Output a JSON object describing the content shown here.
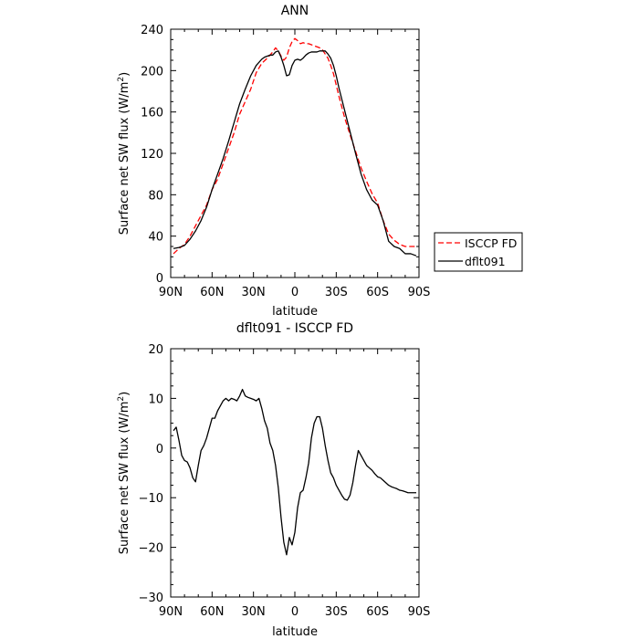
{
  "chart_data": [
    {
      "type": "line",
      "title": "ANN",
      "xlabel": "latitude",
      "ylabel": "Surface net SW flux (W/m",
      "ylabel_sup": "2",
      "ylabel_close": ")",
      "xlim": [
        -90,
        90
      ],
      "ylim": [
        0,
        240
      ],
      "xticks": [
        -90,
        -60,
        -30,
        0,
        30,
        60,
        90
      ],
      "xtick_labels": [
        "90N",
        "60N",
        "30N",
        "0",
        "30S",
        "60S",
        "90S"
      ],
      "yticks": [
        0,
        40,
        80,
        120,
        160,
        200,
        240
      ],
      "ytick_labels": [
        "0",
        "40",
        "80",
        "120",
        "160",
        "200",
        "240"
      ],
      "grid": false,
      "legend_position": "right",
      "series": [
        {
          "name": "ISCCP FD",
          "color": "#ff0000",
          "dash": "dashed",
          "x": [
            -88,
            -84,
            -80,
            -76,
            -72,
            -68,
            -64,
            -60,
            -56,
            -52,
            -48,
            -44,
            -40,
            -36,
            -32,
            -28,
            -24,
            -20,
            -16,
            -14,
            -12,
            -10,
            -8,
            -6,
            -4,
            -2,
            0,
            2,
            4,
            6,
            8,
            10,
            12,
            14,
            16,
            18,
            20,
            22,
            24,
            26,
            28,
            30,
            32,
            36,
            40,
            44,
            48,
            52,
            56,
            60,
            64,
            68,
            72,
            76,
            80,
            84,
            88
          ],
          "y": [
            23,
            28,
            32,
            40,
            50,
            60,
            70,
            85,
            95,
            110,
            125,
            140,
            158,
            170,
            182,
            198,
            207,
            212,
            218,
            222,
            219,
            214,
            210,
            213,
            222,
            228,
            231,
            229,
            226,
            227,
            226,
            226,
            225,
            224,
            223,
            222,
            220,
            216,
            212,
            205,
            197,
            186,
            175,
            155,
            138,
            122,
            106,
            93,
            81,
            72,
            55,
            42,
            36,
            32,
            30,
            30,
            30
          ]
        },
        {
          "name": "dflt091",
          "color": "#000000",
          "dash": "solid",
          "x": [
            -88,
            -84,
            -80,
            -76,
            -72,
            -68,
            -64,
            -60,
            -56,
            -52,
            -48,
            -44,
            -40,
            -36,
            -32,
            -28,
            -24,
            -22,
            -20,
            -18,
            -16,
            -14,
            -12,
            -10,
            -8,
            -6,
            -4,
            -2,
            0,
            2,
            4,
            6,
            8,
            10,
            12,
            14,
            16,
            18,
            20,
            22,
            24,
            26,
            28,
            30,
            32,
            36,
            40,
            44,
            48,
            52,
            56,
            60,
            64,
            68,
            72,
            76,
            80,
            84,
            88
          ],
          "y": [
            28,
            29,
            31,
            37,
            45,
            55,
            68,
            85,
            100,
            115,
            132,
            150,
            168,
            182,
            195,
            205,
            211,
            213,
            214,
            215,
            215,
            218,
            219,
            213,
            205,
            195,
            196,
            205,
            210,
            211,
            210,
            212,
            215,
            217,
            218,
            218,
            218,
            219,
            219,
            219,
            216,
            212,
            205,
            195,
            183,
            162,
            141,
            120,
            100,
            85,
            75,
            70,
            55,
            35,
            30,
            28,
            23,
            23,
            21
          ]
        }
      ]
    },
    {
      "type": "line",
      "title": "dflt091 - ISCCP FD",
      "xlabel": "latitude",
      "ylabel": "Surface net SW flux (W/m",
      "ylabel_sup": "2",
      "ylabel_close": ")",
      "xlim": [
        -90,
        90
      ],
      "ylim": [
        -30,
        20
      ],
      "xticks": [
        -90,
        -60,
        -30,
        0,
        30,
        60,
        90
      ],
      "xtick_labels": [
        "90N",
        "60N",
        "30N",
        "0",
        "30S",
        "60S",
        "90S"
      ],
      "yticks": [
        -30,
        -20,
        -10,
        0,
        10,
        20
      ],
      "ytick_labels": [
        "−30",
        "−20",
        "−10",
        "0",
        "10",
        "20"
      ],
      "grid": false,
      "series": [
        {
          "color": "#000000",
          "dash": "solid",
          "x": [
            -88,
            -86,
            -84,
            -82,
            -80,
            -78,
            -76,
            -74,
            -72,
            -70,
            -68,
            -66,
            -64,
            -62,
            -60,
            -58,
            -56,
            -54,
            -52,
            -50,
            -48,
            -46,
            -44,
            -42,
            -40,
            -38,
            -36,
            -34,
            -32,
            -30,
            -28,
            -26,
            -24,
            -22,
            -20,
            -18,
            -16,
            -14,
            -12,
            -10,
            -8,
            -6,
            -4,
            -2,
            0,
            2,
            4,
            6,
            8,
            10,
            12,
            14,
            16,
            18,
            20,
            22,
            24,
            26,
            28,
            30,
            32,
            34,
            36,
            38,
            40,
            42,
            44,
            46,
            48,
            50,
            52,
            54,
            56,
            58,
            60,
            62,
            64,
            66,
            68,
            70,
            72,
            74,
            76,
            78,
            80,
            82,
            84,
            86,
            88
          ],
          "y": [
            3.5,
            4.2,
            1.5,
            -1.5,
            -2.5,
            -2.8,
            -4.0,
            -6.0,
            -6.8,
            -3.5,
            -0.5,
            0.5,
            2.0,
            4.0,
            6.0,
            6.0,
            7.5,
            8.5,
            9.5,
            10.0,
            9.5,
            10.0,
            9.8,
            9.5,
            10.5,
            11.8,
            10.5,
            10.2,
            10.0,
            9.8,
            9.5,
            10.0,
            8.0,
            5.5,
            4.0,
            1.0,
            -0.5,
            -3.5,
            -8.0,
            -14.0,
            -19.0,
            -21.5,
            -18.0,
            -19.5,
            -17.0,
            -12.0,
            -9.0,
            -8.5,
            -6.0,
            -3.0,
            2.0,
            5.0,
            6.3,
            6.3,
            4.0,
            0.5,
            -2.5,
            -5.0,
            -6.0,
            -7.5,
            -8.5,
            -9.5,
            -10.3,
            -10.5,
            -9.5,
            -7.0,
            -3.5,
            -0.5,
            -1.5,
            -2.5,
            -3.5,
            -4.0,
            -4.5,
            -5.2,
            -5.8,
            -6.0,
            -6.5,
            -7.0,
            -7.5,
            -7.8,
            -8.0,
            -8.2,
            -8.5,
            -8.6,
            -8.8,
            -9.0,
            -9.0,
            -9.0,
            -9.0
          ]
        }
      ]
    }
  ]
}
